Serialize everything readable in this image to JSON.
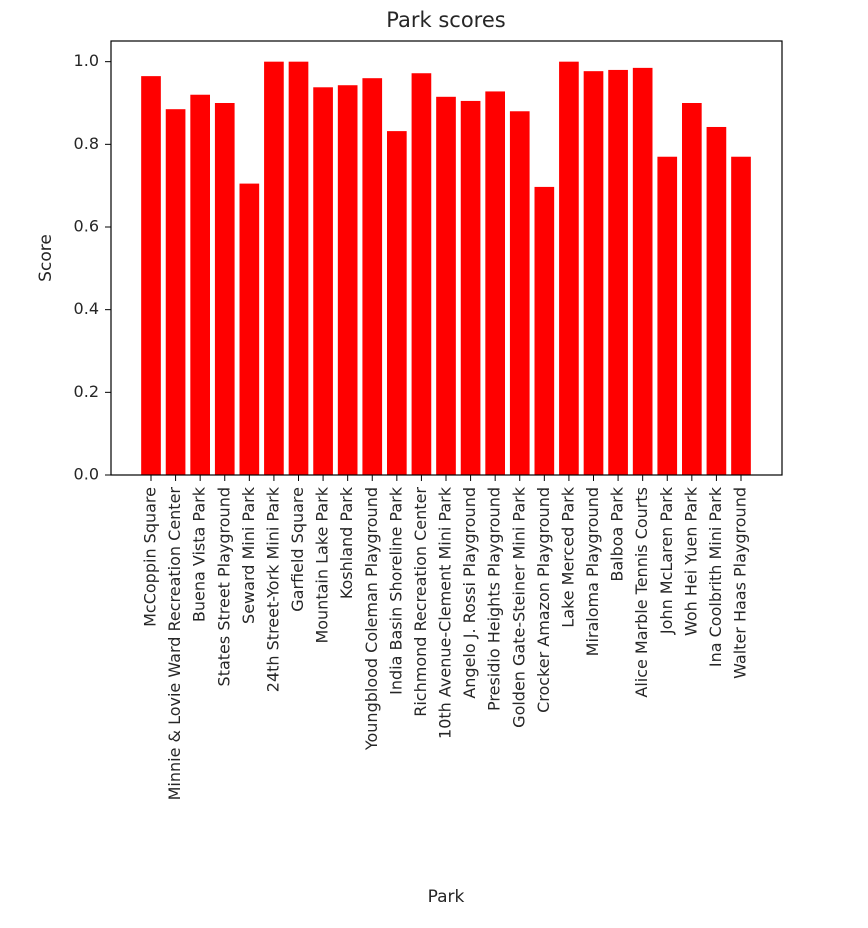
{
  "chart_data": {
    "type": "bar",
    "title": "Park scores",
    "xlabel": "Park",
    "ylabel": "Score",
    "ylim": [
      0,
      1.05
    ],
    "yticks": [
      0.0,
      0.2,
      0.4,
      0.6,
      0.8,
      1.0
    ],
    "ytick_labels": [
      "0.0",
      "0.2",
      "0.4",
      "0.6",
      "0.8",
      "1.0"
    ],
    "bar_color": "#ff0000",
    "grid": false,
    "categories": [
      "McCoppin Square",
      "Minnie & Lovie Ward Recreation Center",
      "Buena Vista Park",
      "States Street Playground",
      "Seward Mini Park",
      "24th Street-York Mini Park",
      "Garfield Square",
      "Mountain Lake Park",
      "Koshland Park",
      "Youngblood Coleman Playground",
      "India Basin Shoreline Park",
      "Richmond Recreation Center",
      "10th Avenue-Clement Mini Park",
      "Angelo J. Rossi Playground",
      "Presidio Heights Playground",
      "Golden Gate-Steiner Mini Park",
      "Crocker Amazon Playground",
      "Lake Merced Park",
      "Miraloma Playground",
      "Balboa Park",
      "Alice Marble Tennis Courts",
      "John McLaren Park",
      "Woh Hei Yuen Park",
      "Ina Coolbrith Mini Park",
      "Walter Haas Playground"
    ],
    "values": [
      0.965,
      0.885,
      0.92,
      0.9,
      0.705,
      1.0,
      1.0,
      0.938,
      0.943,
      0.96,
      0.832,
      0.972,
      0.915,
      0.905,
      0.928,
      0.88,
      0.697,
      1.0,
      0.977,
      0.98,
      0.985,
      0.77,
      0.9,
      0.842,
      0.77
    ]
  }
}
